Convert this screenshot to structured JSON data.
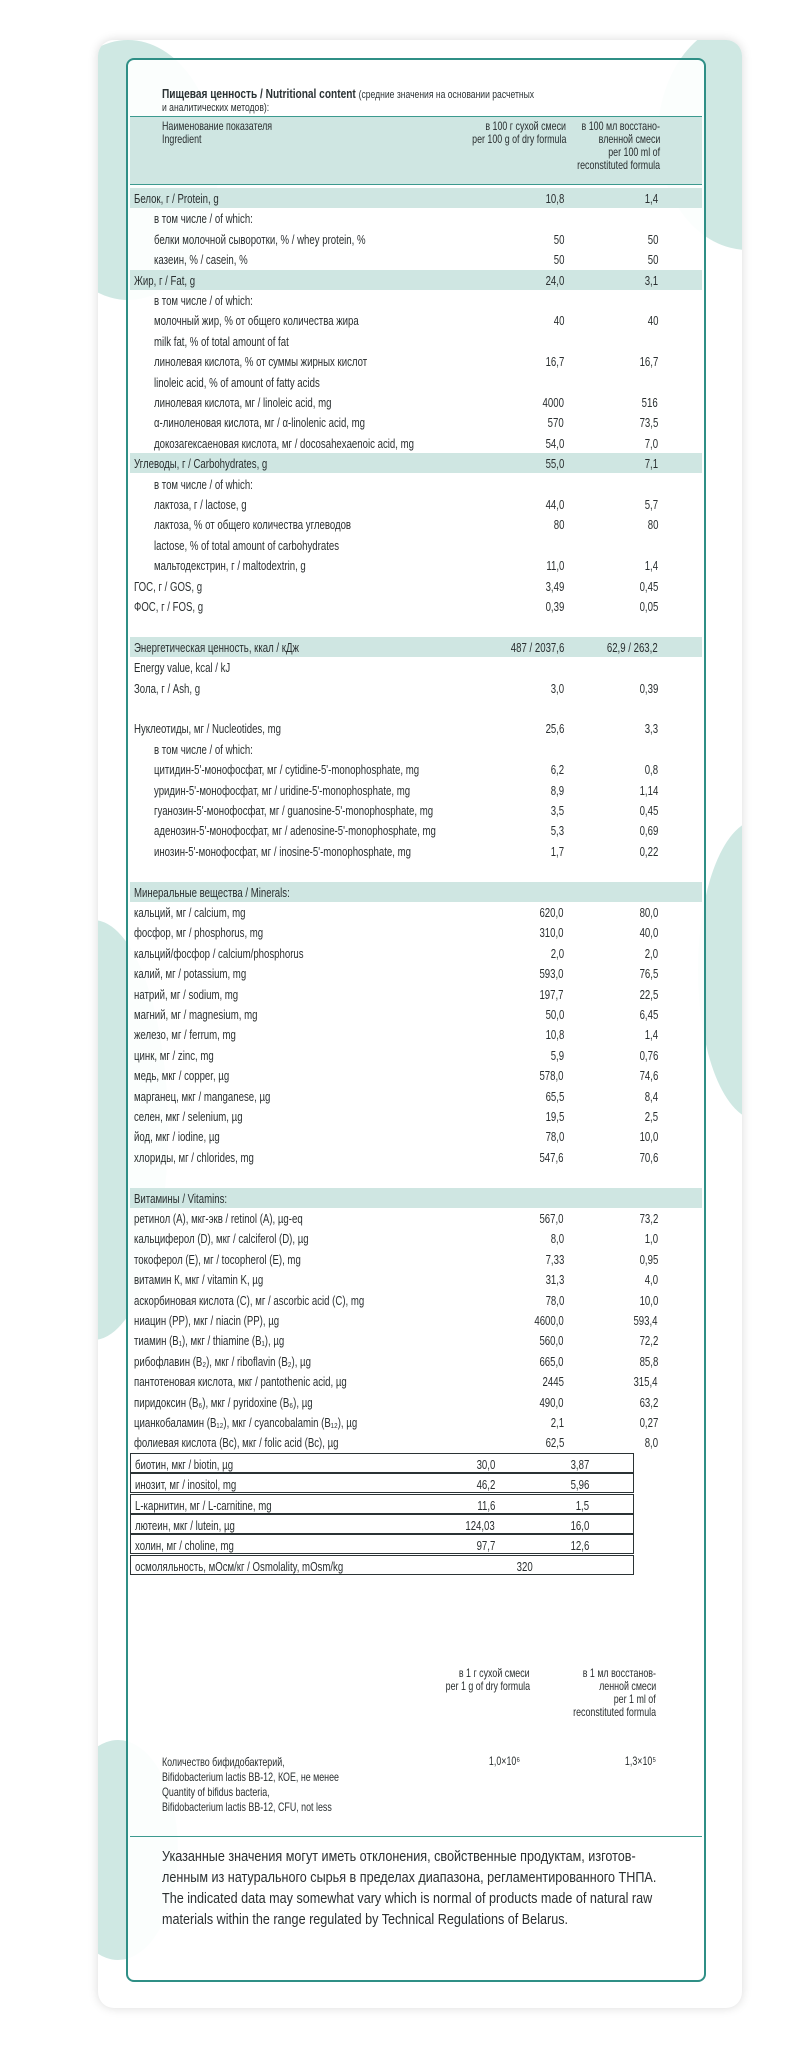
{
  "header": {
    "title": "Пищевая ценность / Nutritional content",
    "note": "(средние значения на основании расчетных",
    "note2": "и аналитических методов):",
    "col_label_ru": "Наименование показателя",
    "col_label_en": "Ingredient",
    "col1": [
      "в 100 г сухой смеси",
      "per 100 g of dry formula"
    ],
    "col2": [
      "в 100 мл восстано-",
      "вленной смеси",
      "per 100 ml of",
      "reconstituted formula"
    ]
  },
  "rows": [
    {
      "label": "Белок, г / Protein, g",
      "v1": "10,8",
      "v2": "1,4",
      "style": "band"
    },
    {
      "label": "в том числе / of which:",
      "v1": "",
      "v2": "",
      "indent": true
    },
    {
      "label": "белки молочной сыворотки, % / whey protein, %",
      "v1": "50",
      "v2": "50",
      "indent": true
    },
    {
      "label": "казеин, % / casein, %",
      "v1": "50",
      "v2": "50",
      "indent": true
    },
    {
      "label": "Жир, г / Fat, g",
      "v1": "24,0",
      "v2": "3,1",
      "style": "band"
    },
    {
      "label": "в том числе / of which:",
      "v1": "",
      "v2": "",
      "indent": true
    },
    {
      "label": "молочный жир, % от общего количества жира",
      "v1": "40",
      "v2": "40",
      "indent": true
    },
    {
      "label": "milk fat, % of total amount of fat",
      "v1": "",
      "v2": "",
      "indent": true
    },
    {
      "label": "линолевая кислота, % от суммы жирных кислот",
      "v1": "16,7",
      "v2": "16,7",
      "indent": true
    },
    {
      "label": "linoleic acid, % of amount of fatty acids",
      "v1": "",
      "v2": "",
      "indent": true
    },
    {
      "label": "линолевая кислота, мг / linoleic acid, mg",
      "v1": "4000",
      "v2": "516",
      "indent": true
    },
    {
      "label": "α-линоленовая кислота, мг / α-linolenic acid, mg",
      "v1": "570",
      "v2": "73,5",
      "indent": true
    },
    {
      "label": "докозагексаеновая кислота, мг / docosahexaenoic acid, mg",
      "v1": "54,0",
      "v2": "7,0",
      "indent": true
    },
    {
      "label": "Углеводы, г / Carbohydrates, g",
      "v1": "55,0",
      "v2": "7,1",
      "style": "band"
    },
    {
      "label": "в том числе / of which:",
      "v1": "",
      "v2": "",
      "indent": true
    },
    {
      "label": "лактоза, г / lactose, g",
      "v1": "44,0",
      "v2": "5,7",
      "indent": true
    },
    {
      "label": "лактоза, % от общего количества углеводов",
      "v1": "80",
      "v2": "80",
      "indent": true
    },
    {
      "label": "lactose, % of total amount of carbohydrates",
      "v1": "",
      "v2": "",
      "indent": true
    },
    {
      "label": "мальтодекстрин, г / maltodextrin, g",
      "v1": "11,0",
      "v2": "1,4",
      "indent": true
    },
    {
      "label": "ГОС, г / GOS, g",
      "v1": "3,49",
      "v2": "0,45"
    },
    {
      "label": "ФОС, г / FOS, g",
      "v1": "0,39",
      "v2": "0,05"
    },
    {
      "label": "",
      "v1": "",
      "v2": ""
    },
    {
      "label": "Энергетическая ценность, ккал / кДж",
      "v1": "487 / 2037,6",
      "v2": "62,9 / 263,2",
      "style": "band"
    },
    {
      "label": "Energy value, kcal / kJ",
      "v1": "",
      "v2": ""
    },
    {
      "label": "Зола, г / Ash, g",
      "v1": "3,0",
      "v2": "0,39"
    },
    {
      "label": "",
      "v1": "",
      "v2": ""
    },
    {
      "label": "Нуклеотиды, мг / Nucleotides, mg",
      "v1": "25,6",
      "v2": "3,3"
    },
    {
      "label": "в том числе / of which:",
      "v1": "",
      "v2": "",
      "indent": true
    },
    {
      "label": "цитидин-5'-монофосфат, мг / cytidine-5'-monophosphate, mg",
      "v1": "6,2",
      "v2": "0,8",
      "indent": true
    },
    {
      "label": "уридин-5'-монофосфат, мг / uridine-5'-monophosphate, mg",
      "v1": "8,9",
      "v2": "1,14",
      "indent": true
    },
    {
      "label": "гуанозин-5'-монофосфат, мг / guanosine-5'-monophosphate, mg",
      "v1": "3,5",
      "v2": "0,45",
      "indent": true
    },
    {
      "label": "аденозин-5'-монофосфат, мг / adenosine-5'-monophosphate, mg",
      "v1": "5,3",
      "v2": "0,69",
      "indent": true
    },
    {
      "label": "инозин-5'-монофосфат, мг / inosine-5'-monophosphate, mg",
      "v1": "1,7",
      "v2": "0,22",
      "indent": true
    },
    {
      "label": "",
      "v1": "",
      "v2": ""
    },
    {
      "label": "Минеральные вещества / Minerals:",
      "v1": "",
      "v2": "",
      "style": "band"
    },
    {
      "label": "кальций, мг / calcium, mg",
      "v1": "620,0",
      "v2": "80,0"
    },
    {
      "label": "фосфор, мг / phosphorus, mg",
      "v1": "310,0",
      "v2": "40,0"
    },
    {
      "label": "кальций/фосфор / calcium/phosphorus",
      "v1": "2,0",
      "v2": "2,0"
    },
    {
      "label": "калий, мг / potassium, mg",
      "v1": "593,0",
      "v2": "76,5"
    },
    {
      "label": "натрий, мг / sodium, mg",
      "v1": "197,7",
      "v2": "22,5"
    },
    {
      "label": "магний, мг / magnesium, mg",
      "v1": "50,0",
      "v2": "6,45"
    },
    {
      "label": "железо, мг / ferrum, mg",
      "v1": "10,8",
      "v2": "1,4"
    },
    {
      "label": "цинк, мг / zinc, mg",
      "v1": "5,9",
      "v2": "0,76"
    },
    {
      "label": "медь, мкг / copper, µg",
      "v1": "578,0",
      "v2": "74,6"
    },
    {
      "label": "марганец, мкг / manganese, µg",
      "v1": "65,5",
      "v2": "8,4"
    },
    {
      "label": "селен, мкг / selenium, µg",
      "v1": "19,5",
      "v2": "2,5"
    },
    {
      "label": "йод, мкг / iodine, µg",
      "v1": "78,0",
      "v2": "10,0"
    },
    {
      "label": "хлориды, мг / chlorides, mg",
      "v1": "547,6",
      "v2": "70,6"
    },
    {
      "label": "",
      "v1": "",
      "v2": ""
    },
    {
      "label": "Витамины / Vitamins:",
      "v1": "",
      "v2": "",
      "style": "band"
    },
    {
      "label": "ретинол (А), мкг-экв / retinol (A), µg-eq",
      "v1": "567,0",
      "v2": "73,2"
    },
    {
      "label": "кальциферол (D), мкг / calciferol (D), µg",
      "v1": "8,0",
      "v2": "1,0"
    },
    {
      "label": "токоферол (Е), мг / tocopherol (E), mg",
      "v1": "7,33",
      "v2": "0,95"
    },
    {
      "label": "витамин К, мкг / vitamin K, µg",
      "v1": "31,3",
      "v2": "4,0"
    },
    {
      "label": "аскорбиновая кислота (С), мг / ascorbic acid (C), mg",
      "v1": "78,0",
      "v2": "10,0"
    },
    {
      "label": "ниацин (РР), мкг / niacin (PP), µg",
      "v1": "4600,0",
      "v2": "593,4"
    },
    {
      "label": "тиамин (В₁), мкг / thiamine (B₁), µg",
      "v1": "560,0",
      "v2": "72,2"
    },
    {
      "label": "рибофлавин (В₂), мкг / riboflavin (B₂), µg",
      "v1": "665,0",
      "v2": "85,8"
    },
    {
      "label": "пантотеновая кислота, мкг / pantothenic acid, µg",
      "v1": "2445",
      "v2": "315,4"
    },
    {
      "label": "пиридоксин (В₆), мкг / pyridoxine (B₆), µg",
      "v1": "490,0",
      "v2": "63,2"
    },
    {
      "label": "цианкобаламин (В₁₂), мкг / cyancobalamin (B₁₂), µg",
      "v1": "2,1",
      "v2": "0,27"
    },
    {
      "label": "фолиевая кислота (Вс), мкг / folic acid (Bc), µg",
      "v1": "62,5",
      "v2": "8,0"
    },
    {
      "label": "биотин, мкг / biotin, µg",
      "v1": "30,0",
      "v2": "3,87",
      "style": "box"
    },
    {
      "label": "инозит, мг / inositol, mg",
      "v1": "46,2",
      "v2": "5,96",
      "style": "box"
    },
    {
      "label": "L-карнитин, мг / L-carnitine, mg",
      "v1": "11,6",
      "v2": "1,5",
      "style": "box"
    },
    {
      "label": "лютеин, мкг / lutein, µg",
      "v1": "124,03",
      "v2": "16,0",
      "style": "box"
    },
    {
      "label": "холин, мг / choline, mg",
      "v1": "97,7",
      "v2": "12,6",
      "style": "box"
    },
    {
      "label": "осмоляльность, мОсм/кг / Osmolality, mOsm/kg",
      "v1": "",
      "v2": "320",
      "style": "box"
    }
  ],
  "bifido": {
    "col1": [
      "в 1 г сухой смеси",
      "per 1 g of dry formula"
    ],
    "col2": [
      "в 1 мл восстанов-",
      "ленной смеси",
      "per 1 ml of",
      "reconstituted formula"
    ],
    "label_lines": [
      "Количество бифидобактерий,",
      "Bifidobacterium lactis BB-12, КОЕ, не менее",
      "Quantity of bifidus bacteria,",
      "Bifidobacterium lactis BB-12, CFU, not less"
    ],
    "v1": "1,0×10⁶",
    "v2": "1,3×10⁵"
  },
  "disclaimer": [
    "Указанные значения могут иметь отклонения, свойственные продуктам, изготов-",
    "ленным из натурального сырья в пределах диапазона, регламентированного ТНПА.",
    "The indicated data may somewhat vary which is normal of products made of natural raw",
    "materials within the range regulated by Technical Regulations of Belarus."
  ],
  "colors": {
    "accent": "#2f8f86",
    "band": "#cfe6e2",
    "blob": "#cfe8e3"
  }
}
